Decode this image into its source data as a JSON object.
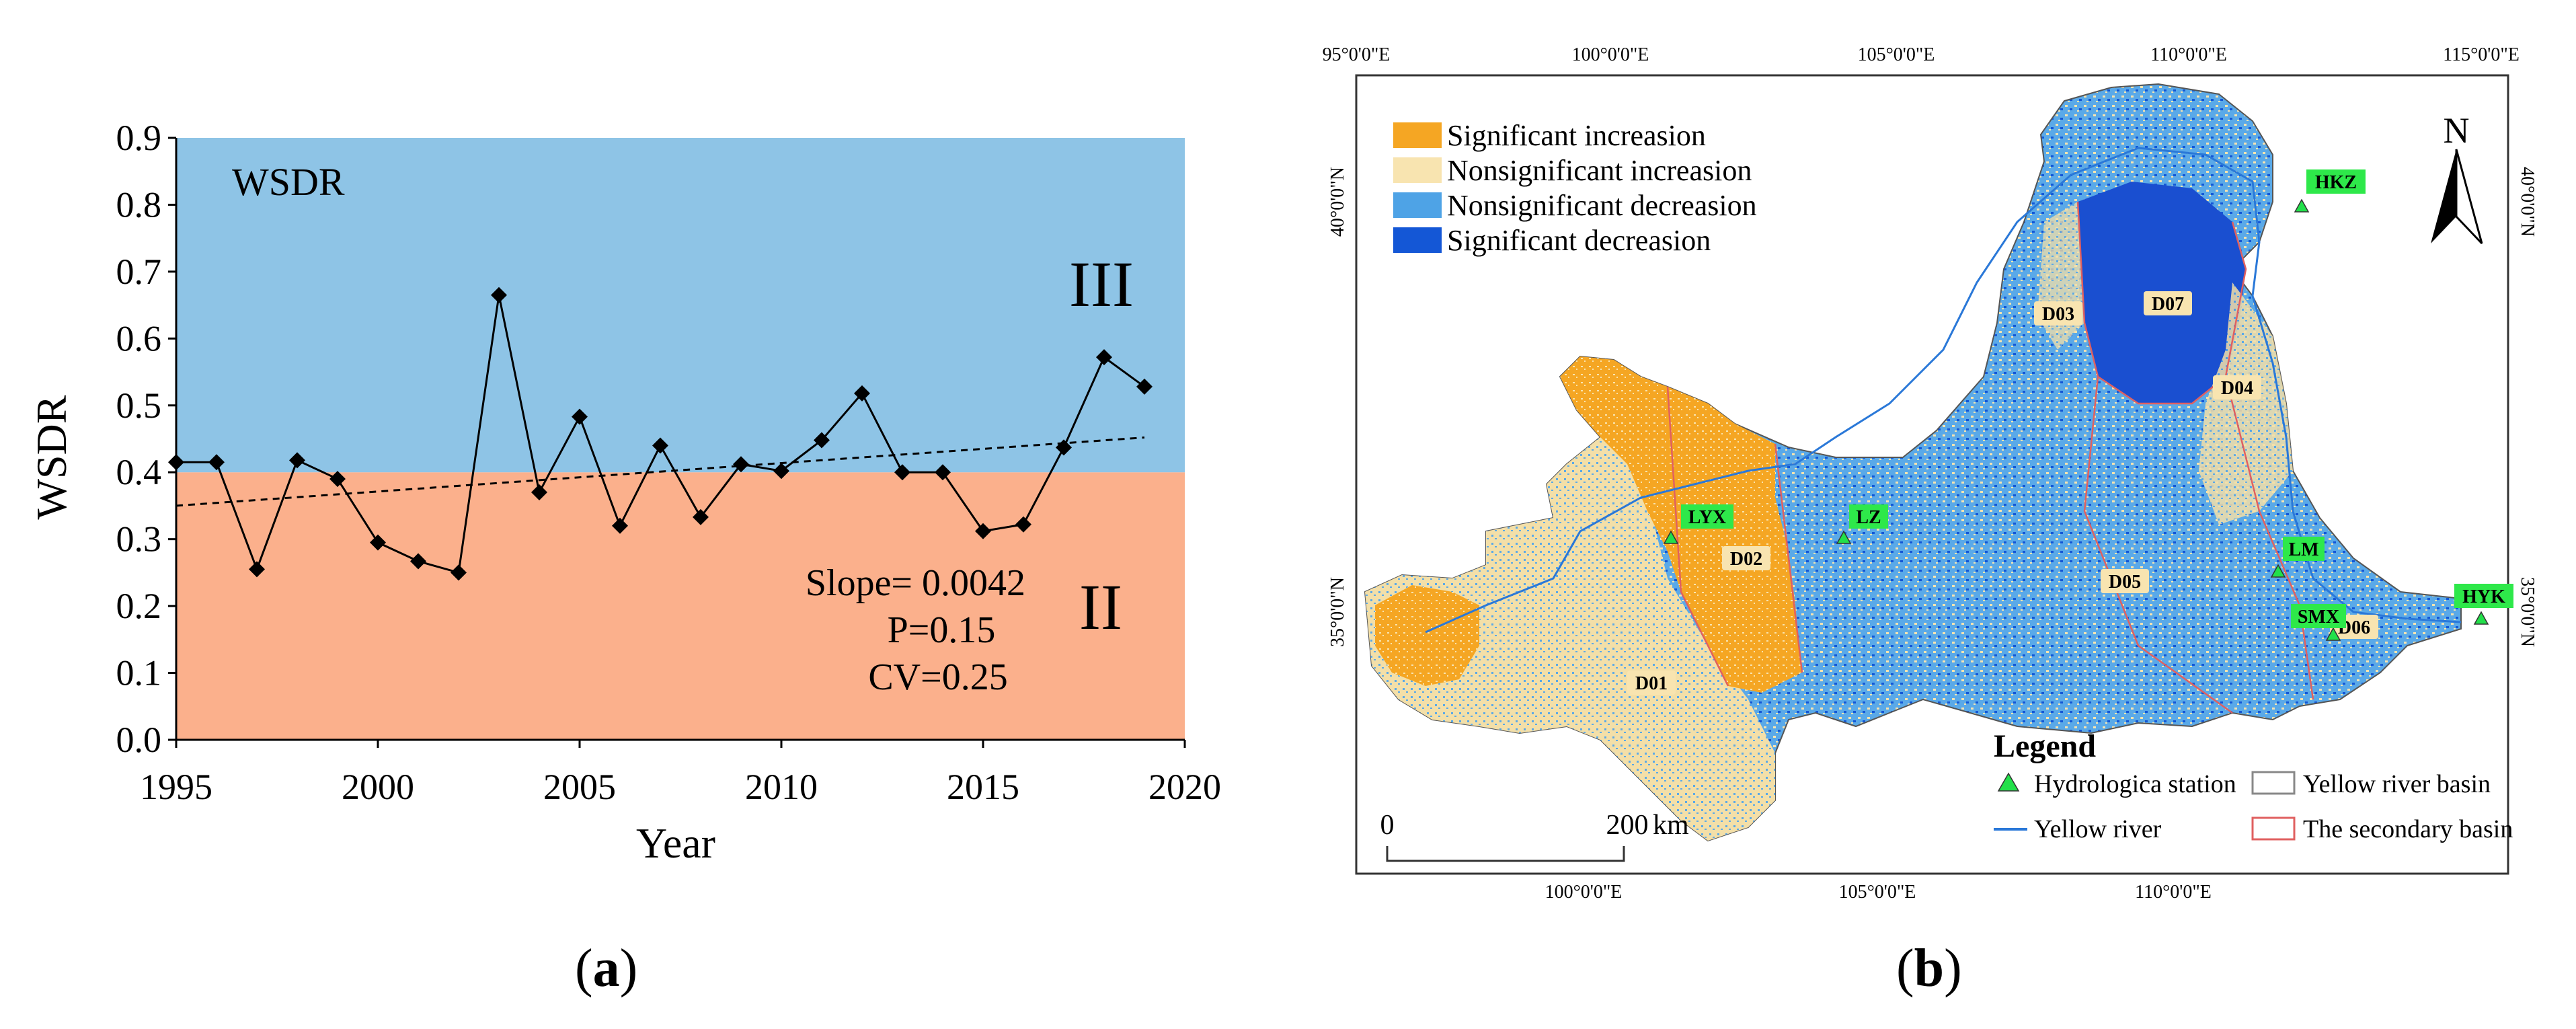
{
  "panel_a": {
    "caption_letter": "a",
    "ylabel": "WSDR",
    "xlabel": "Year",
    "legend_label": "WSDR",
    "zone_high_label": "III",
    "zone_low_label": "II",
    "stats": {
      "slope": "Slope= 0.0042",
      "p": "P=0.15",
      "cv": "CV=0.25"
    },
    "colors": {
      "upper_zone": "#8ec4e6",
      "lower_zone": "#fbb08c",
      "line": "#000000",
      "trend": "#000000"
    }
  },
  "chart_data": {
    "type": "line",
    "title": "",
    "xlabel": "Year",
    "ylabel": "WSDR",
    "xlim": [
      1995,
      2020
    ],
    "ylim": [
      0.0,
      0.9
    ],
    "x_ticks": [
      "1995",
      "2000",
      "2005",
      "2010",
      "2015",
      "2020"
    ],
    "y_ticks": [
      "0.0",
      "0.1",
      "0.2",
      "0.3",
      "0.4",
      "0.5",
      "0.6",
      "0.7",
      "0.8",
      "0.9"
    ],
    "zones": [
      {
        "label": "II",
        "from": 0.0,
        "to": 0.4
      },
      {
        "label": "III",
        "from": 0.4,
        "to": 0.9
      }
    ],
    "series": [
      {
        "name": "WSDR",
        "x": [
          1995,
          1996,
          1997,
          1998,
          1999,
          2000,
          2001,
          2002,
          2003,
          2004,
          2005,
          2006,
          2007,
          2008,
          2009,
          2010,
          2011,
          2012,
          2013,
          2014,
          2015,
          2016,
          2017,
          2018,
          2019
        ],
        "values": [
          0.415,
          0.415,
          0.255,
          0.418,
          0.39,
          0.295,
          0.267,
          0.25,
          0.665,
          0.37,
          0.483,
          0.32,
          0.44,
          0.333,
          0.412,
          0.402,
          0.448,
          0.518,
          0.4,
          0.4,
          0.312,
          0.322,
          0.437,
          0.572,
          0.528
        ]
      }
    ],
    "trendline": {
      "slope": 0.0042,
      "x": [
        1995,
        2019
      ],
      "values": [
        0.35,
        0.452
      ]
    }
  },
  "panel_b": {
    "caption_letter": "b",
    "top_lon_labels": [
      "95°0'0\"E",
      "100°0'0\"E",
      "105°0'0\"E",
      "110°0'0\"E",
      "115°0'0\"E"
    ],
    "bottom_lon_labels": [
      "100°0'0\"E",
      "105°0'0\"E",
      "110°0'0\"E"
    ],
    "left_lat_labels": [
      "40°0'0\"N",
      "35°0'0\"N"
    ],
    "right_lat_labels": [
      "40°0'0\"N",
      "35°0'0\"N"
    ],
    "north_label": "N",
    "classes": [
      {
        "label": "Significant increasion",
        "color": "#f5a623"
      },
      {
        "label": "Nonsignificant increasion",
        "color": "#f8e4b0"
      },
      {
        "label": "Nonsignificant decreasion",
        "color": "#4ea3e6"
      },
      {
        "label": "Significant decreasion",
        "color": "#1457d6"
      }
    ],
    "subbasins": [
      "D01",
      "D02",
      "D03",
      "D04",
      "D05",
      "D06",
      "D07"
    ],
    "stations": [
      "HKZ",
      "LYX",
      "LZ",
      "LM",
      "SMX",
      "HYK"
    ],
    "legend": {
      "title": "Legend",
      "station": "Hydrologica station",
      "basin": "Yellow river basin",
      "river": "Yellow river",
      "secondary": "The secondary basin"
    },
    "scale": {
      "zero": "0",
      "value": "200",
      "unit": "km"
    },
    "colors": {
      "station": "#22e04a",
      "station_label_bg": "#2ee84a",
      "river": "#2a78d8",
      "secondary_boundary": "#e06060",
      "basin_boundary": "#888888"
    }
  }
}
